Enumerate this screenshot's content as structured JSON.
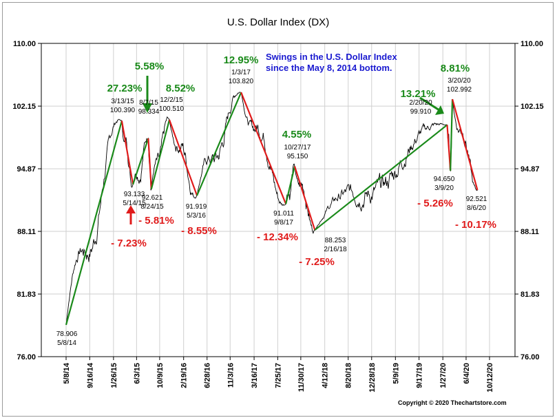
{
  "chart_data": {
    "type": "line",
    "title": "U.S. Dollar Index (DX)",
    "annotation": "Swings in the U.S. Dollar Index\nsince the May 8, 2014 bottom.",
    "copyright": "Copyright © 2020 Thechartstore.com",
    "ylim": [
      76.0,
      110.0
    ],
    "y_ticks": [
      "110.00",
      "102.15",
      "94.87",
      "88.11",
      "81.83",
      "76.00"
    ],
    "x_ticks": [
      "5/8/14",
      "9/16/14",
      "1/26/15",
      "6/3/15",
      "10/9/15",
      "2/19/16",
      "6/28/16",
      "11/3/16",
      "3/16/17",
      "7/25/17",
      "11/30/17",
      "4/12/18",
      "8/20/18",
      "12/28/18",
      "5/9/19",
      "9/17/19",
      "1/27/20",
      "6/4/20",
      "10/12/20"
    ],
    "swing_points": [
      {
        "date": "5/8/14",
        "value": 78.906,
        "type": "low"
      },
      {
        "date": "3/13/15",
        "value": 100.39,
        "type": "high"
      },
      {
        "date": "5/14/15",
        "value": 93.133,
        "type": "low"
      },
      {
        "date": "8/7/15",
        "value": 98.334,
        "type": "high"
      },
      {
        "date": "8/24/15",
        "value": 92.621,
        "type": "low"
      },
      {
        "date": "12/2/15",
        "value": 100.51,
        "type": "high"
      },
      {
        "date": "5/3/16",
        "value": 91.919,
        "type": "low"
      },
      {
        "date": "1/3/17",
        "value": 103.82,
        "type": "high"
      },
      {
        "date": "9/8/17",
        "value": 91.011,
        "type": "low"
      },
      {
        "date": "10/27/17",
        "value": 95.15,
        "type": "high"
      },
      {
        "date": "2/16/18",
        "value": 88.253,
        "type": "low"
      },
      {
        "date": "2/20/20",
        "value": 99.91,
        "type": "high"
      },
      {
        "date": "3/9/20",
        "value": 94.65,
        "type": "low"
      },
      {
        "date": "3/20/20",
        "value": 102.992,
        "type": "high"
      },
      {
        "date": "8/6/20",
        "value": 92.521,
        "type": "low"
      }
    ],
    "point_labels": [
      {
        "value": "78.906",
        "date": "5/8/14"
      },
      {
        "date": "3/13/15",
        "value": "100.390"
      },
      {
        "value": "93.133",
        "date": "5/14/15"
      },
      {
        "date": "8/7/15",
        "value": "98.334"
      },
      {
        "value": "92.621",
        "date": "8/24/15"
      },
      {
        "date": "12/2/15",
        "value": "100.510"
      },
      {
        "value": "91.919",
        "date": "5/3/16"
      },
      {
        "date": "1/3/17",
        "value": "103.820"
      },
      {
        "value": "91.011",
        "date": "9/8/17"
      },
      {
        "date": "10/27/17",
        "value": "95.150"
      },
      {
        "value": "88.253",
        "date": "2/16/18"
      },
      {
        "date": "2/20/20",
        "value": "99.910"
      },
      {
        "value": "94.650",
        "date": "3/9/20"
      },
      {
        "date": "3/20/20",
        "value": "102.992"
      },
      {
        "value": "92.521",
        "date": "8/6/20"
      }
    ],
    "swing_percentages": [
      {
        "text": "27.23%",
        "direction": "up"
      },
      {
        "text": "- 7.23%",
        "direction": "down"
      },
      {
        "text": "5.58%",
        "direction": "up"
      },
      {
        "text": "- 5.81%",
        "direction": "down"
      },
      {
        "text": "8.52%",
        "direction": "up"
      },
      {
        "text": "- 8.55%",
        "direction": "down"
      },
      {
        "text": "12.95%",
        "direction": "up"
      },
      {
        "text": "- 12.34%",
        "direction": "down"
      },
      {
        "text": "4.55%",
        "direction": "up"
      },
      {
        "text": "- 7.25%",
        "direction": "down"
      },
      {
        "text": "13.21%",
        "direction": "up"
      },
      {
        "text": "- 5.26%",
        "direction": "down"
      },
      {
        "text": "8.81%",
        "direction": "up"
      },
      {
        "text": "- 10.17%",
        "direction": "down"
      }
    ],
    "colors": {
      "up": "#1a8a1a",
      "down": "#e01b1b",
      "price": "#000000",
      "grid": "#cfcfcf",
      "annotation": "#1a1ad0"
    }
  }
}
